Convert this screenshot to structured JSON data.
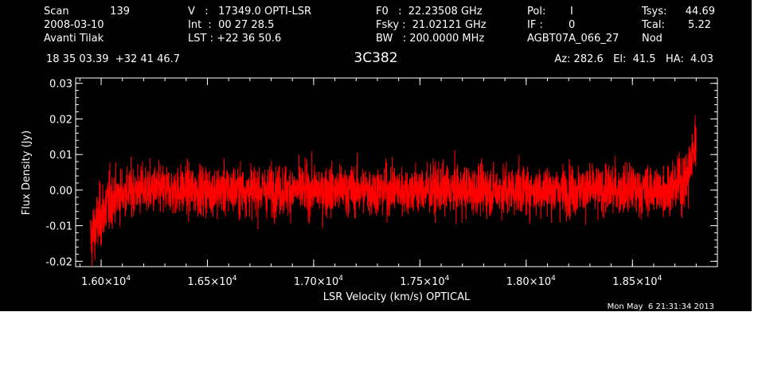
{
  "header": {
    "col1": [
      {
        "label": "Scan",
        "value": "139"
      },
      {
        "label": "2008-03-10",
        "value": ""
      },
      {
        "label": "Avanti Tilak",
        "value": ""
      }
    ],
    "col2": [
      "V   :   17349.0 OPTI-LSR",
      "Int  :  00 27 28.5",
      "LST : +22 36 50.6"
    ],
    "col3": [
      "F0   :  22.23508 GHz",
      "Fsky :  21.02121 GHz",
      "BW   : 200.0000 MHz"
    ],
    "col4": [
      {
        "label": "Pol:",
        "value": "I"
      },
      {
        "label": "IF :",
        "value": "0"
      },
      {
        "label": "AGBT07A_066_27",
        "value": ""
      }
    ],
    "col5": [
      {
        "label": "Tsys:",
        "value": "44.69"
      },
      {
        "label": "Tcal:",
        "value": "5.22"
      },
      {
        "label": "Nod",
        "value": ""
      }
    ],
    "coords": "18 35 03.39  +32 41 46.7",
    "source": "3C382",
    "azel": "Az: 282.6   El:  41.5   HA:  4.03"
  },
  "footer": {
    "timestamp": "Mon May  6 21:31:34 2013"
  },
  "colors": {
    "background": "#000000",
    "foreground": "#ffffff",
    "trace": "#ff0000"
  },
  "chart_data": {
    "type": "line",
    "title": "3C382",
    "xlabel": "LSR Velocity (km/s) OPTICAL",
    "ylabel": "Flux Density (Jy)",
    "xlim": [
      15880,
      18900
    ],
    "ylim": [
      -0.0215,
      0.0315
    ],
    "x_ticks": [
      {
        "value": 16000,
        "mantissa": "1.60",
        "exp": "4"
      },
      {
        "value": 16500,
        "mantissa": "1.65",
        "exp": "4"
      },
      {
        "value": 17000,
        "mantissa": "1.70",
        "exp": "4"
      },
      {
        "value": 17500,
        "mantissa": "1.75",
        "exp": "4"
      },
      {
        "value": 18000,
        "mantissa": "1.80",
        "exp": "4"
      },
      {
        "value": 18500,
        "mantissa": "1.85",
        "exp": "4"
      }
    ],
    "y_ticks": [
      {
        "value": 0.03,
        "label": "0.03"
      },
      {
        "value": 0.02,
        "label": "0.02"
      },
      {
        "value": 0.01,
        "label": "0.01"
      },
      {
        "value": 0.0,
        "label": "0.00"
      },
      {
        "value": -0.01,
        "label": "-0.01"
      },
      {
        "value": -0.02,
        "label": "-0.02"
      }
    ],
    "grid": false,
    "series": [
      {
        "color": "#ff0000",
        "x": [
          15950,
          15970,
          15990,
          16010,
          16030,
          16060,
          16100,
          16150,
          16200,
          16300,
          16400,
          16500,
          16600,
          16700,
          16800,
          16900,
          17000,
          17100,
          17200,
          17300,
          17400,
          17500,
          17600,
          17700,
          17800,
          17900,
          18000,
          18100,
          18200,
          18300,
          18400,
          18500,
          18600,
          18650,
          18700,
          18730,
          18760,
          18780,
          18800
        ],
        "y": [
          -0.014,
          -0.011,
          -0.008,
          -0.006,
          -0.004,
          -0.002,
          -0.001,
          0.0,
          0.0,
          0.0,
          0.0,
          0.0,
          0.0,
          0.0,
          0.0,
          0.0,
          0.0,
          0.0,
          0.0,
          0.0,
          0.0,
          0.0,
          0.0,
          0.0,
          0.0,
          0.0,
          0.0,
          0.0,
          0.0,
          0.0,
          0.0,
          0.0,
          0.0,
          0.0,
          0.001,
          0.002,
          0.004,
          0.009,
          0.014
        ],
        "noise_rms_jy": 0.0035
      }
    ]
  }
}
